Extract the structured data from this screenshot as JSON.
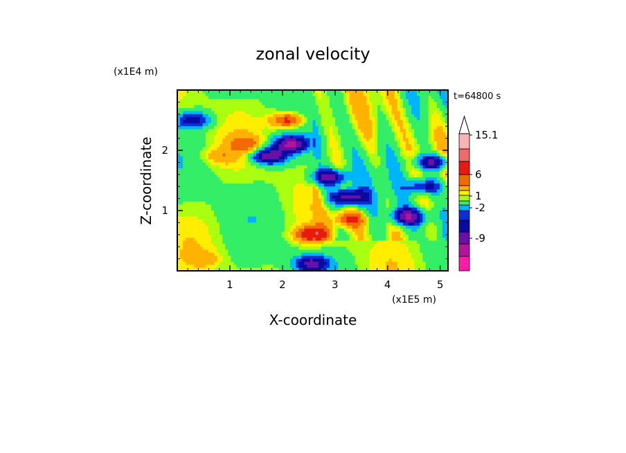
{
  "chart_data": {
    "type": "heatmap",
    "title": "zonal velocity",
    "time_label": "t=64800 s",
    "xlabel": "X-coordinate",
    "ylabel": "Z-coordinate",
    "x_unit": "(x1E5 m)",
    "y_unit": "(x1E4 m)",
    "xlim": [
      0,
      5.15
    ],
    "ylim": [
      0,
      3.0
    ],
    "x_ticks": [
      "1",
      "2",
      "3",
      "4",
      "5"
    ],
    "x_tick_values": [
      1,
      2,
      3,
      4,
      5
    ],
    "y_ticks": [
      "1",
      "2"
    ],
    "y_tick_values": [
      1,
      2
    ],
    "colorbar": {
      "labels": [
        "15.1",
        "6",
        "1",
        "-2",
        "-9"
      ],
      "colors": [
        "#ff1aa8",
        "#b2139f",
        "#6a0fa8",
        "#0a0aa0",
        "#0a2fd8",
        "#00b5ff",
        "#33ee66",
        "#aaff11",
        "#ffee00",
        "#ffb300",
        "#f56a00",
        "#e81a10",
        "#f06a6a",
        "#f9b3b3",
        "#ffffff"
      ]
    },
    "features": [
      {
        "x": 2.55,
        "z": 0.6,
        "value": 8
      },
      {
        "x": 3.25,
        "z": 1.22,
        "value": -12
      },
      {
        "x": 2.1,
        "z": 2.5,
        "value": 8
      },
      {
        "x": 2.15,
        "z": 2.1,
        "value": -12
      },
      {
        "x": 1.75,
        "z": 1.9,
        "value": -12
      },
      {
        "x": 0.3,
        "z": 2.5,
        "value": -8
      },
      {
        "x": 2.9,
        "z": 1.55,
        "value": -11
      },
      {
        "x": 4.4,
        "z": 0.9,
        "value": -11
      },
      {
        "x": 3.3,
        "z": 0.85,
        "value": 6
      },
      {
        "x": 1.3,
        "z": 2.1,
        "value": 4
      },
      {
        "x": 0.8,
        "z": 1.9,
        "value": 3
      },
      {
        "x": 4.7,
        "z": 1.4,
        "value": -8
      },
      {
        "x": 4.85,
        "z": 1.8,
        "value": -10
      },
      {
        "x": 2.55,
        "z": 0.12,
        "value": -10
      },
      {
        "x": 1.5,
        "z": 0.6,
        "value": 1
      },
      {
        "x": 0.5,
        "z": 0.2,
        "value": 2
      }
    ]
  }
}
